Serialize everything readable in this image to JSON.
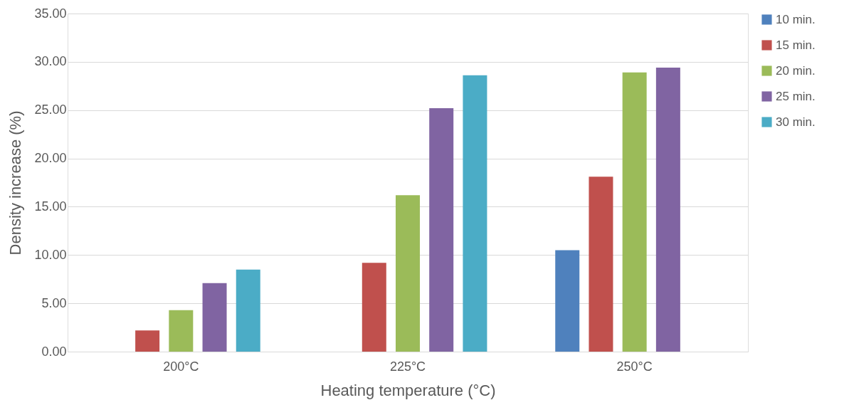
{
  "chart_data": {
    "type": "bar",
    "xlabel": "Heating temperature (°C)",
    "ylabel": "Density increase  (%)",
    "categories": [
      "200°C",
      "225°C",
      "250°C"
    ],
    "series": [
      {
        "name": "10 min.",
        "color": "#4f81bd",
        "values": [
          null,
          null,
          10.5
        ]
      },
      {
        "name": "15 min.",
        "color": "#c0504d",
        "values": [
          2.2,
          9.2,
          18.1
        ]
      },
      {
        "name": "20 min.",
        "color": "#9bbb59",
        "values": [
          4.3,
          16.2,
          28.9
        ]
      },
      {
        "name": "25 min.",
        "color": "#8064a2",
        "values": [
          7.1,
          25.2,
          29.4
        ]
      },
      {
        "name": "30 min.",
        "color": "#4bacc6",
        "values": [
          8.5,
          28.6,
          null
        ]
      }
    ],
    "ylim": [
      0,
      35
    ],
    "yticks": [
      {
        "value": 0,
        "label": "0.00"
      },
      {
        "value": 5,
        "label": "5.00"
      },
      {
        "value": 10,
        "label": "10.00"
      },
      {
        "value": 15,
        "label": "15.00"
      },
      {
        "value": 20,
        "label": "20.00"
      },
      {
        "value": 25,
        "label": "25.00"
      },
      {
        "value": 30,
        "label": "30.00"
      },
      {
        "value": 35,
        "label": "35.00"
      }
    ],
    "grid": "y",
    "legend": "right"
  }
}
